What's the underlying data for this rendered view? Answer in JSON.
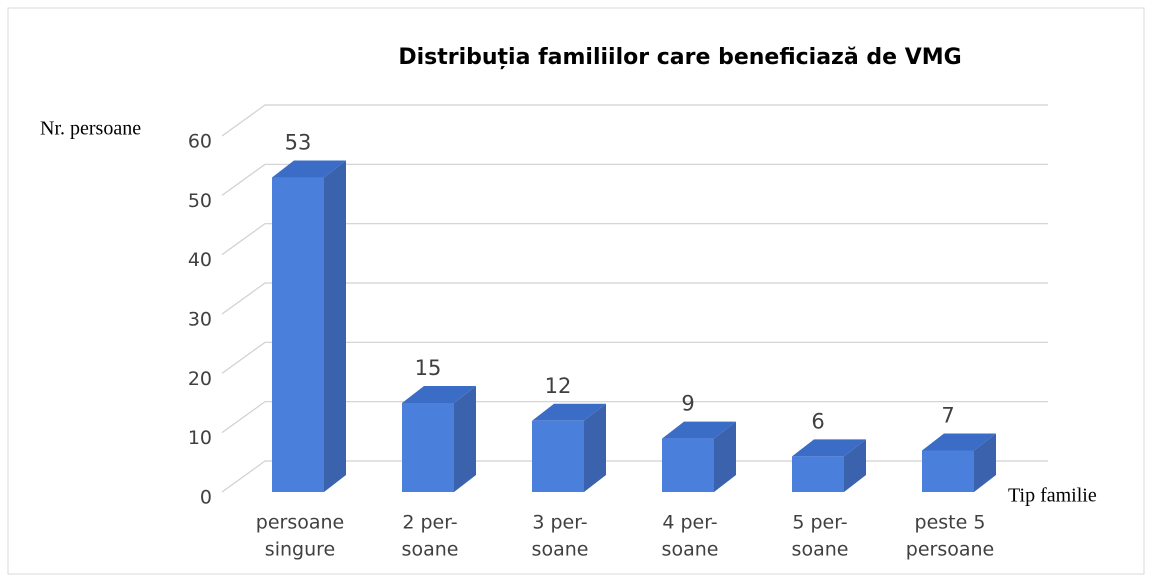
{
  "chart_data": {
    "type": "bar3d",
    "title": "Distribuția familiilor care beneficiază de VMG",
    "y_label": "Nr. persoane",
    "x_label": "Tip familie",
    "categories": [
      [
        "persoane",
        "singure"
      ],
      [
        "2 per-",
        "soane"
      ],
      [
        "3 per-",
        "soane"
      ],
      [
        "4 per-",
        "soane"
      ],
      [
        "5 per-",
        "soane"
      ],
      [
        "peste 5",
        "persoane"
      ]
    ],
    "values": [
      53,
      15,
      12,
      9,
      6,
      7
    ],
    "color": "#4a7fdc",
    "ylim": [
      0,
      60
    ],
    "yticks": [
      0,
      10,
      20,
      30,
      40,
      50,
      60
    ],
    "grid": true
  }
}
